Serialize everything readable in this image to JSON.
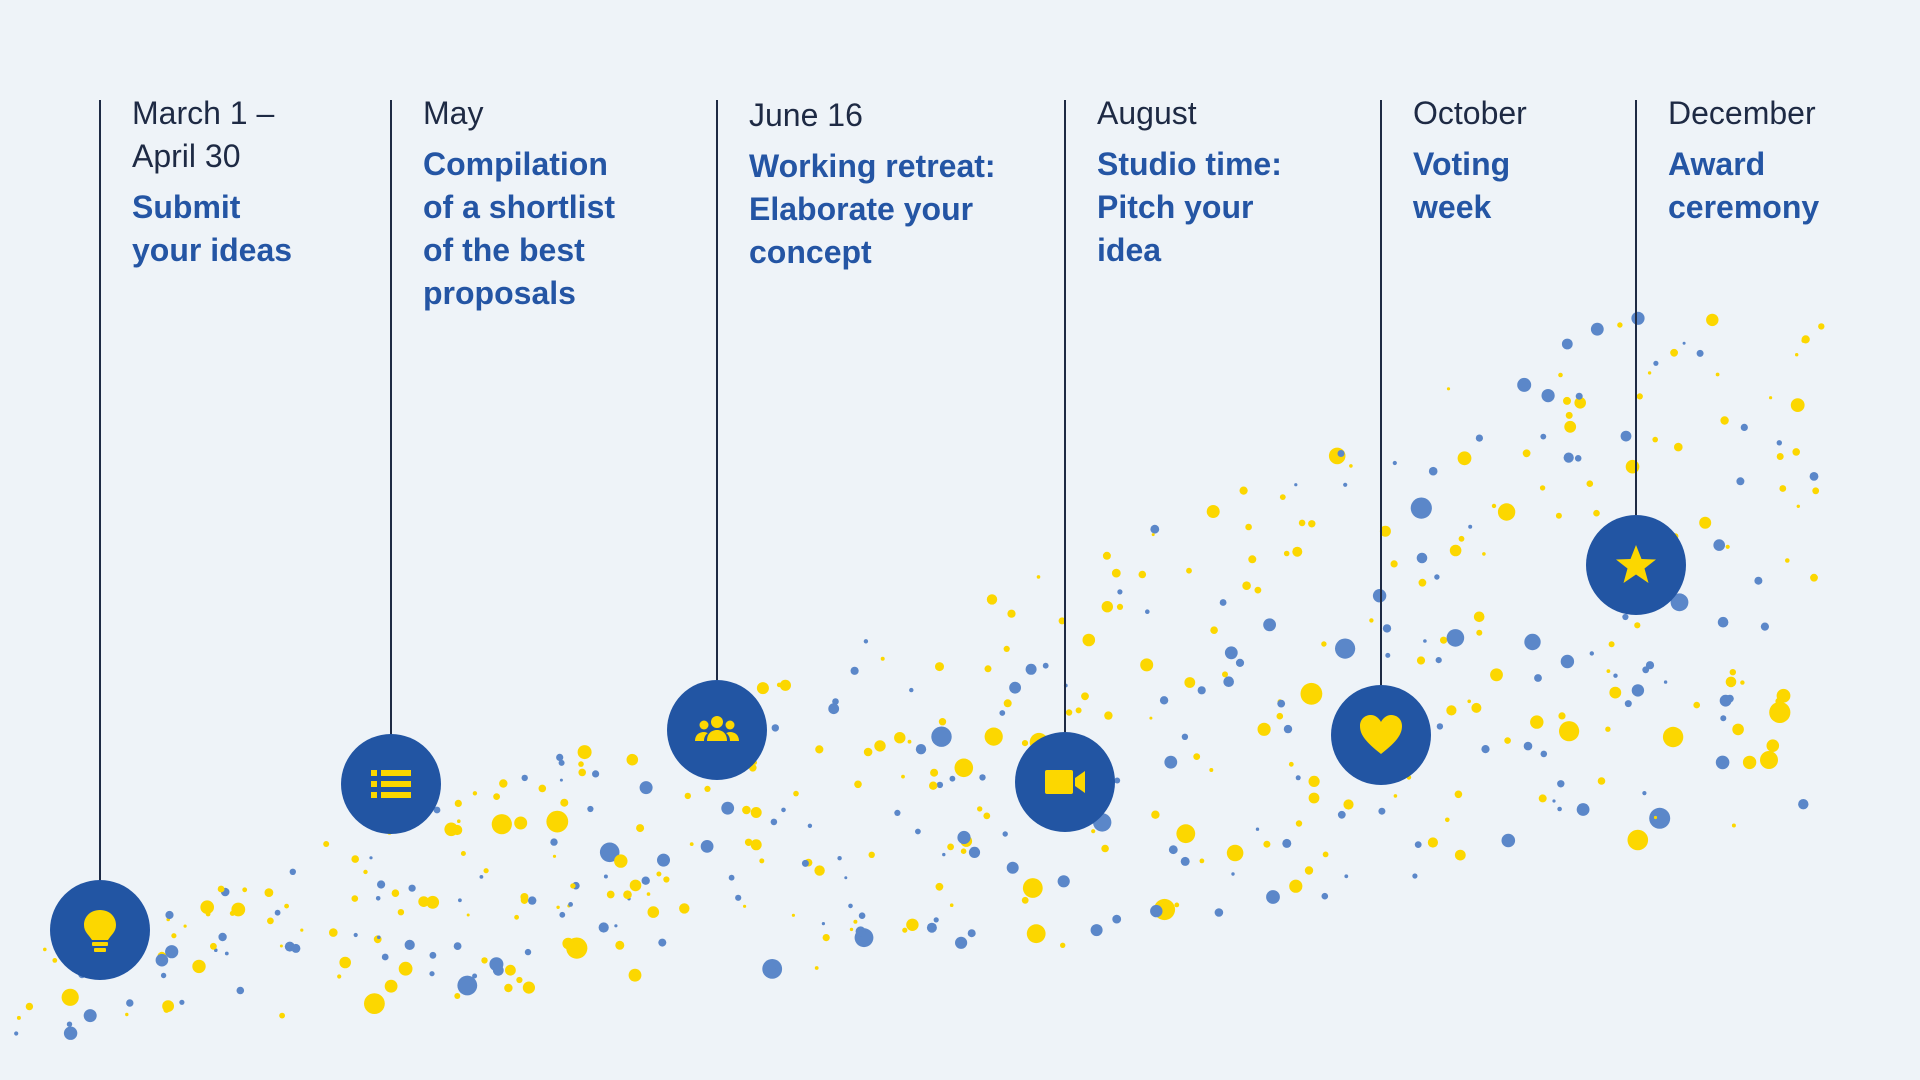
{
  "colors": {
    "background": "#eef3f8",
    "node": "#2255a3",
    "accent_yellow": "#fcd700",
    "accent_blue": "#5b87c9",
    "title": "#2455a4",
    "date": "#1e2a44"
  },
  "milestones": [
    {
      "date": "March 1 – April 30",
      "title": "Submit your ideas",
      "icon": "lightbulb-icon"
    },
    {
      "date": "May",
      "title": "Compilation of a shortlist of the best proposals",
      "icon": "list-icon"
    },
    {
      "date": "June 16",
      "title": "Working retreat: Elaborate your concept",
      "icon": "group-icon"
    },
    {
      "date": "August",
      "title": "Studio time: Pitch your idea",
      "icon": "video-camera-icon"
    },
    {
      "date": "October",
      "title": "Voting week",
      "icon": "heart-icon"
    },
    {
      "date": "December",
      "title": "Award ceremony",
      "icon": "star-icon"
    }
  ]
}
